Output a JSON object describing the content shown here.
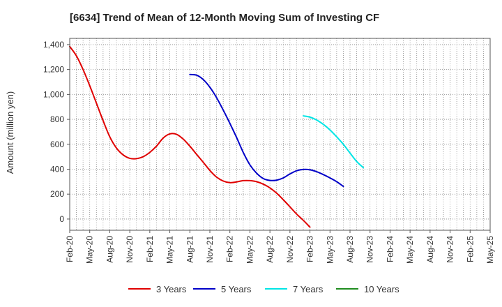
{
  "chart_data": {
    "type": "line",
    "title": "[6634]  Trend of Mean of 12-Month Moving Sum of Investing CF",
    "xlabel": "",
    "ylabel": "Amount (million yen)",
    "ylim": [
      -90,
      1450
    ],
    "yticks": [
      0,
      200,
      400,
      600,
      800,
      1000,
      1200,
      1400
    ],
    "ytick_labels": [
      "0",
      "200",
      "400",
      "600",
      "800",
      "1,000",
      "1,200",
      "1,400"
    ],
    "x_tick_labels": [
      "Feb-20",
      "May-20",
      "Aug-20",
      "Nov-20",
      "Feb-21",
      "May-21",
      "Aug-21",
      "Nov-21",
      "Feb-22",
      "May-22",
      "Aug-22",
      "Nov-22",
      "Feb-23",
      "May-23",
      "Aug-23",
      "Nov-23",
      "Feb-24",
      "May-24",
      "Aug-24",
      "Nov-24",
      "Feb-25",
      "May-25"
    ],
    "grid": true,
    "legend_position": "bottom",
    "series": [
      {
        "name": "3 Years",
        "color": "#e00000",
        "points": [
          [
            0,
            1385
          ],
          [
            1,
            1310
          ],
          [
            2,
            1200
          ],
          [
            3,
            1070
          ],
          [
            4,
            930
          ],
          [
            5,
            790
          ],
          [
            6,
            660
          ],
          [
            7,
            570
          ],
          [
            8,
            515
          ],
          [
            9,
            487
          ],
          [
            10,
            485
          ],
          [
            11,
            500
          ],
          [
            12,
            535
          ],
          [
            13,
            585
          ],
          [
            14,
            650
          ],
          [
            15,
            683
          ],
          [
            16,
            680
          ],
          [
            17,
            642
          ],
          [
            18,
            585
          ],
          [
            19,
            520
          ],
          [
            20,
            456
          ],
          [
            21,
            390
          ],
          [
            22,
            337
          ],
          [
            23,
            305
          ],
          [
            24,
            292
          ],
          [
            25,
            298
          ],
          [
            26,
            308
          ],
          [
            27,
            308
          ],
          [
            28,
            300
          ],
          [
            29,
            280
          ],
          [
            30,
            250
          ],
          [
            31,
            208
          ],
          [
            32,
            155
          ],
          [
            33,
            98
          ],
          [
            34,
            40
          ],
          [
            35,
            -10
          ],
          [
            36,
            -65
          ]
        ]
      },
      {
        "name": "5 Years",
        "color": "#0000c8",
        "points": [
          [
            18,
            1160
          ],
          [
            19,
            1155
          ],
          [
            20,
            1120
          ],
          [
            21,
            1058
          ],
          [
            22,
            975
          ],
          [
            23,
            875
          ],
          [
            24,
            768
          ],
          [
            25,
            655
          ],
          [
            26,
            535
          ],
          [
            27,
            435
          ],
          [
            28,
            368
          ],
          [
            29,
            325
          ],
          [
            30,
            310
          ],
          [
            31,
            312
          ],
          [
            32,
            330
          ],
          [
            33,
            362
          ],
          [
            34,
            388
          ],
          [
            35,
            398
          ],
          [
            36,
            395
          ],
          [
            37,
            380
          ],
          [
            38,
            357
          ],
          [
            39,
            330
          ],
          [
            40,
            300
          ],
          [
            41,
            262
          ]
        ]
      },
      {
        "name": "7 Years",
        "color": "#00e5e5",
        "points": [
          [
            35,
            828
          ],
          [
            36,
            818
          ],
          [
            37,
            795
          ],
          [
            38,
            760
          ],
          [
            39,
            715
          ],
          [
            40,
            660
          ],
          [
            41,
            600
          ],
          [
            42,
            530
          ],
          [
            43,
            462
          ],
          [
            44,
            412
          ]
        ]
      },
      {
        "name": "10 Years",
        "color": "#1e8c1e",
        "points": []
      }
    ]
  }
}
